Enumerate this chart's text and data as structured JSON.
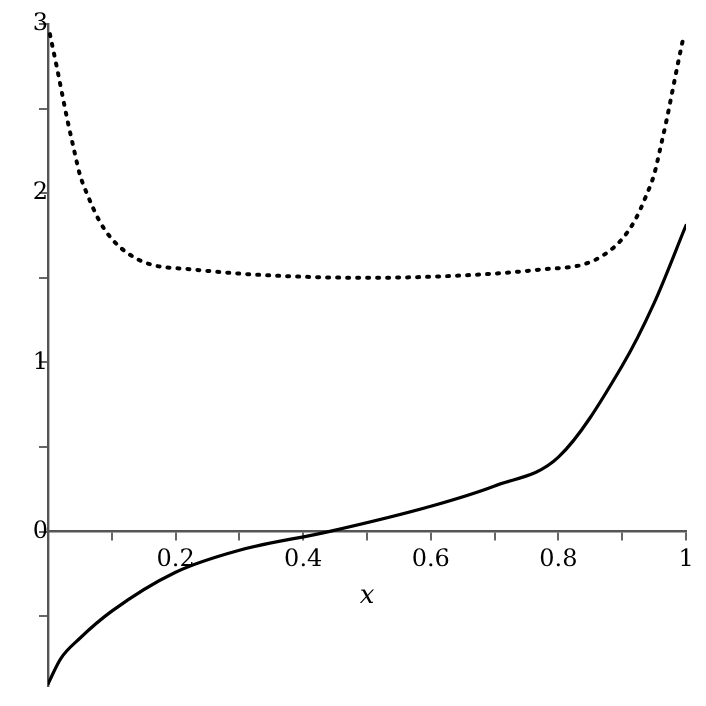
{
  "chart_data": {
    "type": "line",
    "xlabel": "x",
    "x": [
      0.003,
      0.013,
      0.022,
      0.03,
      0.04,
      0.05,
      0.063,
      0.08,
      0.1,
      0.127,
      0.16,
      0.225,
      0.32,
      0.5,
      0.68,
      0.775,
      0.84,
      0.873,
      0.9,
      0.92,
      0.937,
      0.95,
      0.96,
      0.97,
      0.978,
      0.987,
      0.997
    ],
    "series": [
      {
        "color": "#000000",
        "line_style": "dotted",
        "values": [
          2.94,
          2.76,
          2.59,
          2.44,
          2.27,
          2.11,
          1.98,
          1.84,
          1.73,
          1.64,
          1.58,
          1.55,
          1.52,
          1.5,
          1.52,
          1.55,
          1.58,
          1.64,
          1.73,
          1.84,
          1.98,
          2.11,
          2.27,
          2.44,
          2.59,
          2.76,
          2.94
        ]
      },
      {
        "color": "#000000",
        "line_style": "solid",
        "x": [
          0,
          0.02,
          0.05,
          0.1,
          0.2,
          0.3,
          0.44,
          0.6,
          0.7,
          0.8,
          0.9,
          0.95,
          1
        ],
        "values": [
          -0.9,
          -0.75,
          -0.63,
          -0.47,
          -0.24,
          -0.11,
          0,
          0.15,
          0.27,
          0.44,
          0.98,
          1.35,
          1.81
        ]
      }
    ],
    "xlim": [
      0,
      1
    ],
    "ylim": [
      -0.91,
      3
    ],
    "xticks": [
      {
        "value": 0.1,
        "label": null
      },
      0.2,
      {
        "value": 0.3,
        "label": null
      },
      0.4,
      {
        "value": 0.5,
        "label": null
      },
      0.6,
      {
        "value": 0.7,
        "label": null
      },
      0.8,
      {
        "value": 0.9,
        "label": null
      },
      1
    ],
    "yticks": [
      {
        "value": -0.5,
        "label": null
      },
      0,
      {
        "value": 0.5,
        "label": null
      },
      1,
      {
        "value": 1.5,
        "label": null
      },
      2,
      {
        "value": 2.5,
        "label": null
      },
      3
    ],
    "grid": false,
    "legend": false,
    "marker": "none"
  }
}
